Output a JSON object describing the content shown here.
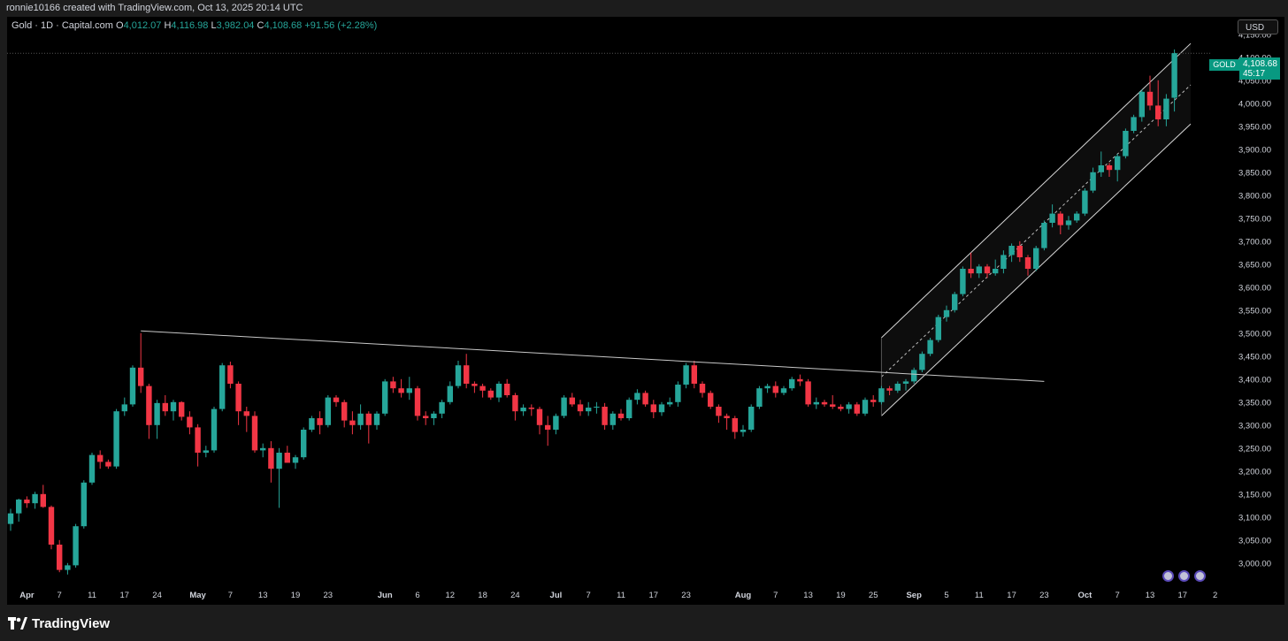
{
  "attribution": "ronnie10166 created with TradingView.com, Oct 13, 2025 20:14 UTC",
  "legend": {
    "title": "Gold · 1D · Capital.com",
    "o_label": "O",
    "o_value": "4,012.07",
    "h_label": "H",
    "h_value": "4,116.98",
    "l_label": "L",
    "l_value": "3,982.04",
    "c_label": "C",
    "c_value": "4,108.68",
    "change": "+91.56 (+2.28%)"
  },
  "currency": "USD",
  "last_price": {
    "symbol": "GOLD",
    "price": "4,108.68",
    "countdown": "45:17"
  },
  "brand": "TradingView",
  "events": [
    "event-icon",
    "event-icon",
    "event-icon"
  ],
  "colors": {
    "up": "#26a69a",
    "down": "#f23645",
    "background": "#000000",
    "price_tag": "#089981"
  },
  "chart_data": {
    "type": "candlestick",
    "ylim": [
      2975,
      4165
    ],
    "y_ticks": [
      "4,150.00",
      "4,100.00",
      "4,050.00",
      "4,000.00",
      "3,950.00",
      "3,900.00",
      "3,850.00",
      "3,800.00",
      "3,750.00",
      "3,700.00",
      "3,650.00",
      "3,600.00",
      "3,550.00",
      "3,500.00",
      "3,450.00",
      "3,400.00",
      "3,350.00",
      "3,300.00",
      "3,250.00",
      "3,200.00",
      "3,150.00",
      "3,100.00",
      "3,050.00",
      "3,000.00"
    ],
    "x_ticks": [
      {
        "label": "Apr",
        "i": 2,
        "bold": true
      },
      {
        "label": "7",
        "i": 6
      },
      {
        "label": "11",
        "i": 10
      },
      {
        "label": "17",
        "i": 14
      },
      {
        "label": "24",
        "i": 18
      },
      {
        "label": "May",
        "i": 23,
        "bold": true
      },
      {
        "label": "7",
        "i": 27
      },
      {
        "label": "13",
        "i": 31
      },
      {
        "label": "19",
        "i": 35
      },
      {
        "label": "23",
        "i": 39
      },
      {
        "label": "Jun",
        "i": 46,
        "bold": true
      },
      {
        "label": "6",
        "i": 50
      },
      {
        "label": "12",
        "i": 54
      },
      {
        "label": "18",
        "i": 58
      },
      {
        "label": "24",
        "i": 62
      },
      {
        "label": "Jul",
        "i": 67,
        "bold": true
      },
      {
        "label": "7",
        "i": 71
      },
      {
        "label": "11",
        "i": 75
      },
      {
        "label": "17",
        "i": 79
      },
      {
        "label": "23",
        "i": 83
      },
      {
        "label": "Aug",
        "i": 90,
        "bold": true
      },
      {
        "label": "7",
        "i": 94
      },
      {
        "label": "13",
        "i": 98
      },
      {
        "label": "19",
        "i": 102
      },
      {
        "label": "25",
        "i": 106
      },
      {
        "label": "Sep",
        "i": 111,
        "bold": true
      },
      {
        "label": "5",
        "i": 115
      },
      {
        "label": "11",
        "i": 119
      },
      {
        "label": "17",
        "i": 123
      },
      {
        "label": "23",
        "i": 127
      },
      {
        "label": "Oct",
        "i": 132,
        "bold": true
      },
      {
        "label": "7",
        "i": 136
      },
      {
        "label": "13",
        "i": 140
      },
      {
        "label": "17",
        "i": 144
      },
      {
        "label": "2",
        "i": 148
      }
    ],
    "candles": [
      [
        3085,
        3118,
        3070,
        3108
      ],
      [
        3108,
        3140,
        3090,
        3138
      ],
      [
        3138,
        3145,
        3120,
        3130
      ],
      [
        3130,
        3155,
        3118,
        3150
      ],
      [
        3150,
        3170,
        3120,
        3122
      ],
      [
        3122,
        3125,
        3030,
        3040
      ],
      [
        3040,
        3050,
        2980,
        2985
      ],
      [
        2985,
        3000,
        2975,
        2995
      ],
      [
        2995,
        3085,
        2990,
        3080
      ],
      [
        3080,
        3180,
        3075,
        3175
      ],
      [
        3175,
        3240,
        3170,
        3235
      ],
      [
        3235,
        3245,
        3205,
        3220
      ],
      [
        3220,
        3225,
        3205,
        3210
      ],
      [
        3210,
        3335,
        3205,
        3330
      ],
      [
        3330,
        3360,
        3320,
        3345
      ],
      [
        3345,
        3430,
        3340,
        3425
      ],
      [
        3425,
        3500,
        3370,
        3385
      ],
      [
        3385,
        3390,
        3270,
        3300
      ],
      [
        3300,
        3355,
        3270,
        3348
      ],
      [
        3348,
        3365,
        3320,
        3330
      ],
      [
        3330,
        3355,
        3310,
        3350
      ],
      [
        3350,
        3352,
        3310,
        3318
      ],
      [
        3318,
        3330,
        3280,
        3295
      ],
      [
        3295,
        3302,
        3210,
        3240
      ],
      [
        3240,
        3255,
        3230,
        3245
      ],
      [
        3245,
        3340,
        3240,
        3335
      ],
      [
        3335,
        3435,
        3330,
        3430
      ],
      [
        3430,
        3438,
        3380,
        3390
      ],
      [
        3390,
        3395,
        3300,
        3330
      ],
      [
        3330,
        3340,
        3285,
        3320
      ],
      [
        3320,
        3330,
        3240,
        3245
      ],
      [
        3245,
        3260,
        3230,
        3250
      ],
      [
        3250,
        3265,
        3175,
        3205
      ],
      [
        3205,
        3250,
        3120,
        3240
      ],
      [
        3240,
        3255,
        3220,
        3218
      ],
      [
        3218,
        3235,
        3205,
        3230
      ],
      [
        3230,
        3295,
        3225,
        3290
      ],
      [
        3290,
        3320,
        3285,
        3315
      ],
      [
        3315,
        3330,
        3280,
        3300
      ],
      [
        3300,
        3365,
        3295,
        3360
      ],
      [
        3360,
        3365,
        3340,
        3350
      ],
      [
        3350,
        3355,
        3295,
        3310
      ],
      [
        3310,
        3330,
        3280,
        3300
      ],
      [
        3300,
        3345,
        3290,
        3325
      ],
      [
        3325,
        3330,
        3260,
        3300
      ],
      [
        3300,
        3330,
        3290,
        3325
      ],
      [
        3325,
        3400,
        3320,
        3395
      ],
      [
        3395,
        3405,
        3370,
        3380
      ],
      [
        3380,
        3400,
        3360,
        3370
      ],
      [
        3370,
        3405,
        3355,
        3380
      ],
      [
        3380,
        3385,
        3310,
        3320
      ],
      [
        3320,
        3330,
        3300,
        3315
      ],
      [
        3315,
        3330,
        3300,
        3325
      ],
      [
        3325,
        3355,
        3315,
        3350
      ],
      [
        3350,
        3395,
        3345,
        3385
      ],
      [
        3385,
        3440,
        3380,
        3430
      ],
      [
        3430,
        3455,
        3380,
        3390
      ],
      [
        3390,
        3395,
        3370,
        3385
      ],
      [
        3385,
        3390,
        3360,
        3375
      ],
      [
        3375,
        3380,
        3355,
        3360
      ],
      [
        3360,
        3395,
        3350,
        3390
      ],
      [
        3390,
        3400,
        3360,
        3365
      ],
      [
        3365,
        3370,
        3310,
        3330
      ],
      [
        3330,
        3345,
        3320,
        3338
      ],
      [
        3338,
        3345,
        3320,
        3335
      ],
      [
        3335,
        3340,
        3280,
        3300
      ],
      [
        3300,
        3320,
        3255,
        3290
      ],
      [
        3290,
        3325,
        3280,
        3320
      ],
      [
        3320,
        3365,
        3315,
        3360
      ],
      [
        3360,
        3370,
        3340,
        3345
      ],
      [
        3345,
        3355,
        3320,
        3330
      ],
      [
        3330,
        3350,
        3320,
        3338
      ],
      [
        3338,
        3350,
        3325,
        3340
      ],
      [
        3340,
        3348,
        3290,
        3300
      ],
      [
        3300,
        3330,
        3290,
        3325
      ],
      [
        3325,
        3335,
        3310,
        3315
      ],
      [
        3315,
        3360,
        3310,
        3355
      ],
      [
        3355,
        3378,
        3345,
        3370
      ],
      [
        3370,
        3375,
        3340,
        3345
      ],
      [
        3345,
        3355,
        3315,
        3328
      ],
      [
        3328,
        3350,
        3320,
        3345
      ],
      [
        3345,
        3360,
        3340,
        3350
      ],
      [
        3350,
        3395,
        3340,
        3388
      ],
      [
        3388,
        3435,
        3380,
        3430
      ],
      [
        3430,
        3440,
        3380,
        3390
      ],
      [
        3390,
        3395,
        3360,
        3370
      ],
      [
        3370,
        3375,
        3335,
        3340
      ],
      [
        3340,
        3345,
        3305,
        3320
      ],
      [
        3320,
        3325,
        3290,
        3315
      ],
      [
        3315,
        3320,
        3270,
        3285
      ],
      [
        3285,
        3300,
        3275,
        3290
      ],
      [
        3290,
        3345,
        3285,
        3340
      ],
      [
        3340,
        3385,
        3335,
        3380
      ],
      [
        3380,
        3390,
        3370,
        3385
      ],
      [
        3385,
        3395,
        3360,
        3370
      ],
      [
        3370,
        3385,
        3365,
        3380
      ],
      [
        3380,
        3405,
        3375,
        3400
      ],
      [
        3400,
        3410,
        3385,
        3395
      ],
      [
        3395,
        3400,
        3340,
        3345
      ],
      [
        3345,
        3360,
        3335,
        3350
      ],
      [
        3350,
        3355,
        3340,
        3345
      ],
      [
        3345,
        3365,
        3335,
        3340
      ],
      [
        3340,
        3345,
        3330,
        3335
      ],
      [
        3335,
        3350,
        3325,
        3345
      ],
      [
        3345,
        3350,
        3320,
        3325
      ],
      [
        3325,
        3360,
        3320,
        3355
      ],
      [
        3355,
        3365,
        3340,
        3350
      ],
      [
        3350,
        3385,
        3345,
        3380
      ],
      [
        3380,
        3385,
        3365,
        3375
      ],
      [
        3375,
        3395,
        3370,
        3390
      ],
      [
        3390,
        3400,
        3375,
        3395
      ],
      [
        3395,
        3425,
        3390,
        3420
      ],
      [
        3420,
        3460,
        3415,
        3455
      ],
      [
        3455,
        3490,
        3450,
        3485
      ],
      [
        3485,
        3540,
        3480,
        3535
      ],
      [
        3535,
        3560,
        3525,
        3550
      ],
      [
        3550,
        3590,
        3545,
        3585
      ],
      [
        3585,
        3645,
        3580,
        3640
      ],
      [
        3640,
        3675,
        3620,
        3630
      ],
      [
        3630,
        3650,
        3620,
        3645
      ],
      [
        3645,
        3650,
        3620,
        3630
      ],
      [
        3630,
        3660,
        3625,
        3640
      ],
      [
        3640,
        3680,
        3630,
        3670
      ],
      [
        3670,
        3695,
        3655,
        3690
      ],
      [
        3690,
        3700,
        3655,
        3665
      ],
      [
        3665,
        3670,
        3625,
        3640
      ],
      [
        3640,
        3690,
        3635,
        3685
      ],
      [
        3685,
        3745,
        3680,
        3740
      ],
      [
        3740,
        3780,
        3730,
        3760
      ],
      [
        3760,
        3765,
        3715,
        3735
      ],
      [
        3735,
        3755,
        3725,
        3745
      ],
      [
        3745,
        3765,
        3740,
        3760
      ],
      [
        3760,
        3815,
        3755,
        3810
      ],
      [
        3810,
        3860,
        3805,
        3850
      ],
      [
        3850,
        3895,
        3840,
        3865
      ],
      [
        3865,
        3870,
        3840,
        3855
      ],
      [
        3855,
        3890,
        3830,
        3885
      ],
      [
        3885,
        3945,
        3880,
        3940
      ],
      [
        3940,
        3975,
        3935,
        3970
      ],
      [
        3970,
        4030,
        3960,
        4025
      ],
      [
        4025,
        4060,
        3985,
        3995
      ],
      [
        3995,
        4050,
        3950,
        3965
      ],
      [
        3965,
        4020,
        3950,
        4010
      ],
      [
        4012,
        4117,
        3982,
        4109
      ]
    ],
    "trendline": {
      "from": {
        "i": 16,
        "price": 3505
      },
      "to": {
        "i": 127,
        "price": 3395
      }
    },
    "channel": {
      "start_i": 107,
      "end_i": 145,
      "upper": [
        3490,
        4130
      ],
      "middle": [
        3405,
        4040
      ],
      "lower": [
        3320,
        3955
      ]
    },
    "last_close_line": 4108.68
  }
}
